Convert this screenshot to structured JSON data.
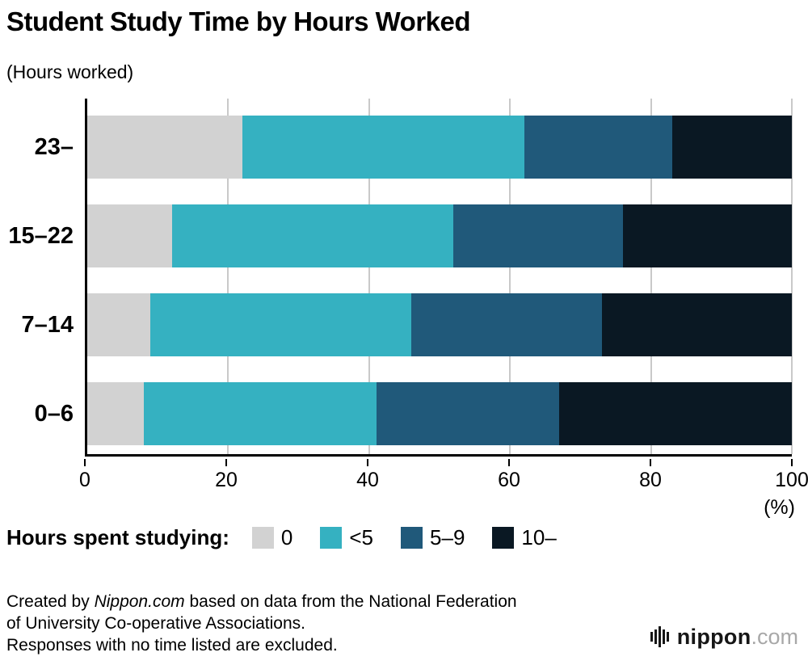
{
  "title": "Student Study Time by Hours Worked",
  "axis_note": "(Hours worked)",
  "x_ticks": [
    "0",
    "20",
    "40",
    "60",
    "80",
    "100"
  ],
  "percent_label": "(%)",
  "legend": {
    "title": "Hours spent studying:",
    "items": [
      {
        "label": "0",
        "color": "#d2d2d2"
      },
      {
        "label": "<5",
        "color": "#35b1c1"
      },
      {
        "label": "5–9",
        "color": "#20597a"
      },
      {
        "label": "10–",
        "color": "#0a1823"
      }
    ]
  },
  "footer": {
    "line1_prefix": "Created by ",
    "line1_brand": "Nippon.com",
    "line1_suffix": " based on data from the National Federation",
    "line2": "of University Co-operative Associations.",
    "line3": "Responses with no time listed are excluded."
  },
  "logo": {
    "name": "nippon",
    "tld": ".com"
  },
  "chart_data": {
    "type": "bar",
    "orientation": "horizontal",
    "stacked": true,
    "title": "Student Study Time by Hours Worked",
    "xlabel": "(%)",
    "ylabel": "(Hours worked)",
    "xlim": [
      0,
      100
    ],
    "grid": true,
    "categories": [
      "23–",
      "15–22",
      "7–14",
      "0–6"
    ],
    "series": [
      {
        "name": "0",
        "color": "#d2d2d2",
        "values": [
          22,
          12,
          9,
          8
        ]
      },
      {
        "name": "<5",
        "color": "#35b1c1",
        "values": [
          40,
          40,
          37,
          33
        ]
      },
      {
        "name": "5–9",
        "color": "#20597a",
        "values": [
          21,
          24,
          27,
          26
        ]
      },
      {
        "name": "10–",
        "color": "#0a1823",
        "values": [
          17,
          24,
          27,
          33
        ]
      }
    ],
    "legend_position": "bottom"
  }
}
